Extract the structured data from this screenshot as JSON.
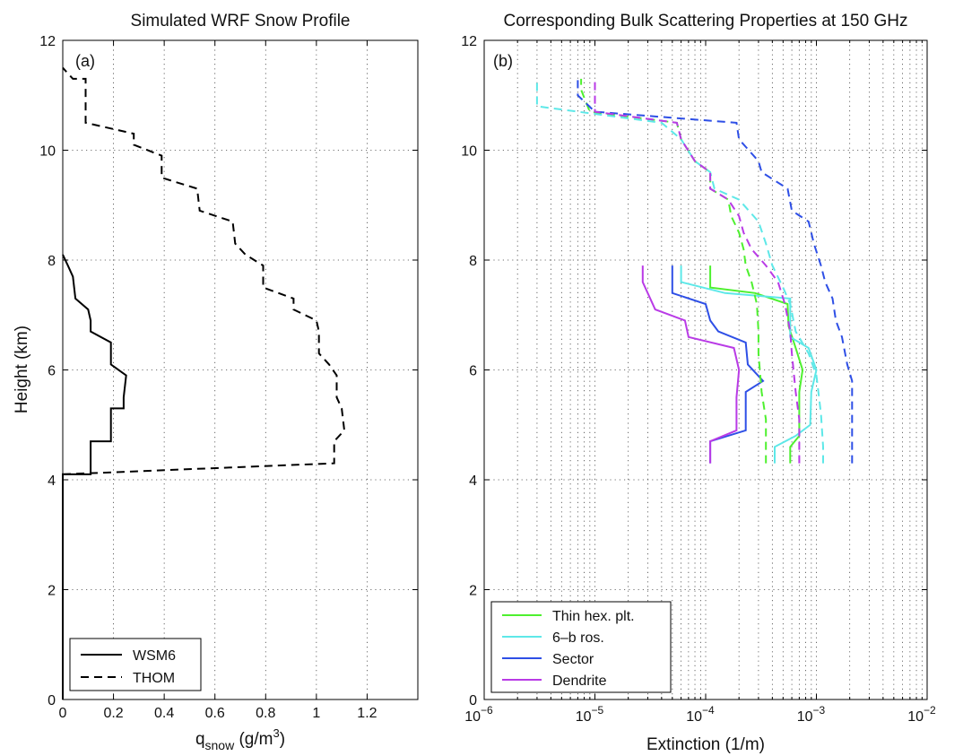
{
  "chart_data": [
    {
      "type": "line",
      "panel": "(a)",
      "title": "Simulated WRF Snow Profile",
      "xlabel_main": "q",
      "xlabel_sub": "snow",
      "xlabel_unit_pre": " (g/m",
      "xlabel_unit_sup": "3",
      "xlabel_unit_post": ")",
      "ylabel": "Height (km)",
      "xlim": [
        0,
        1.4
      ],
      "ylim": [
        0,
        12
      ],
      "xticks": [
        "0",
        "0.2",
        "0.4",
        "0.6",
        "0.8",
        "1",
        "1.2"
      ],
      "yticks": [
        "0",
        "2",
        "4",
        "6",
        "8",
        "10",
        "12"
      ],
      "grid": true,
      "legend_position": "bottom-left",
      "series": [
        {
          "name": "WSM6",
          "style": "solid",
          "color": "#000000",
          "points": [
            [
              0,
              0
            ],
            [
              0,
              4.1
            ],
            [
              0.11,
              4.1
            ],
            [
              0.11,
              4.3
            ],
            [
              0.11,
              4.7
            ],
            [
              0.19,
              4.7
            ],
            [
              0.19,
              4.9
            ],
            [
              0.19,
              5.3
            ],
            [
              0.24,
              5.3
            ],
            [
              0.24,
              5.5
            ],
            [
              0.25,
              5.9
            ],
            [
              0.19,
              6.1
            ],
            [
              0.19,
              6.5
            ],
            [
              0.11,
              6.7
            ],
            [
              0.11,
              6.9
            ],
            [
              0.1,
              7.1
            ],
            [
              0.05,
              7.3
            ],
            [
              0.04,
              7.7
            ],
            [
              0.02,
              7.9
            ],
            [
              0.0,
              8.1
            ]
          ]
        },
        {
          "name": "THOM",
          "style": "dashed",
          "color": "#000000",
          "points": [
            [
              0,
              4.1
            ],
            [
              1.07,
              4.3
            ],
            [
              1.07,
              4.7
            ],
            [
              1.11,
              4.9
            ],
            [
              1.1,
              5.3
            ],
            [
              1.08,
              5.5
            ],
            [
              1.08,
              5.9
            ],
            [
              1.05,
              6.1
            ],
            [
              1.01,
              6.3
            ],
            [
              1.01,
              6.7
            ],
            [
              1.0,
              6.9
            ],
            [
              0.91,
              7.1
            ],
            [
              0.91,
              7.3
            ],
            [
              0.79,
              7.5
            ],
            [
              0.79,
              7.9
            ],
            [
              0.72,
              8.1
            ],
            [
              0.68,
              8.3
            ],
            [
              0.67,
              8.7
            ],
            [
              0.54,
              8.9
            ],
            [
              0.53,
              9.3
            ],
            [
              0.39,
              9.5
            ],
            [
              0.39,
              9.9
            ],
            [
              0.28,
              10.1
            ],
            [
              0.28,
              10.3
            ],
            [
              0.09,
              10.5
            ],
            [
              0.09,
              10.7
            ],
            [
              0.09,
              11.3
            ],
            [
              0.04,
              11.3
            ],
            [
              0.0,
              11.5
            ]
          ]
        }
      ]
    },
    {
      "type": "line",
      "panel": "(b)",
      "title": "Corresponding Bulk Scattering Properties at 150 GHz",
      "xlabel": "Extinction (1/m)",
      "ylabel": "",
      "xscale": "log",
      "xlim": [
        1e-06,
        0.01
      ],
      "ylim": [
        0,
        12
      ],
      "xticks_base": "10",
      "xticks_exp": [
        "−6",
        "−5",
        "−4",
        "−3",
        "−2"
      ],
      "yticks": [
        "0",
        "2",
        "4",
        "6",
        "8",
        "10",
        "12"
      ],
      "grid": true,
      "legend_position": "bottom-left",
      "series": [
        {
          "name": "Thin hex. plt.",
          "style": "solid",
          "color": "#4ef02f",
          "points": [
            [
              0.00058,
              4.3
            ],
            [
              0.00058,
              4.6
            ],
            [
              0.0007,
              4.8
            ],
            [
              0.0007,
              5.6
            ],
            [
              0.00075,
              6.0
            ],
            [
              0.00065,
              6.4
            ],
            [
              0.00056,
              6.8
            ],
            [
              0.00055,
              7.2
            ],
            [
              0.00028,
              7.4
            ],
            [
              0.00011,
              7.5
            ],
            [
              0.00011,
              7.9
            ]
          ]
        },
        {
          "name": "6–b ros.",
          "style": "solid",
          "color": "#5ee8e8",
          "points": [
            [
              0.00042,
              4.3
            ],
            [
              0.00042,
              4.6
            ],
            [
              0.00065,
              4.8
            ],
            [
              0.00088,
              5.0
            ],
            [
              0.0009,
              5.6
            ],
            [
              0.001,
              6.0
            ],
            [
              0.00085,
              6.4
            ],
            [
              0.00058,
              6.6
            ],
            [
              0.00058,
              7.3
            ],
            [
              0.00015,
              7.4
            ],
            [
              6e-05,
              7.6
            ],
            [
              6e-05,
              7.9
            ]
          ]
        },
        {
          "name": "Sector",
          "style": "solid",
          "color": "#2e4fe6",
          "points": [
            [
              0.00011,
              4.3
            ],
            [
              0.00011,
              4.7
            ],
            [
              0.00023,
              4.9
            ],
            [
              0.00023,
              5.6
            ],
            [
              0.00033,
              5.8
            ],
            [
              0.00024,
              6.1
            ],
            [
              0.00023,
              6.5
            ],
            [
              0.00013,
              6.7
            ],
            [
              0.00011,
              6.9
            ],
            [
              0.0001,
              7.2
            ],
            [
              5e-05,
              7.4
            ],
            [
              5e-05,
              7.9
            ]
          ]
        },
        {
          "name": "Dendrite",
          "style": "solid",
          "color": "#b93be6",
          "points": [
            [
              0.00011,
              4.3
            ],
            [
              0.00011,
              4.7
            ],
            [
              0.00019,
              4.9
            ],
            [
              0.00019,
              5.5
            ],
            [
              0.0002,
              6.0
            ],
            [
              0.00018,
              6.4
            ],
            [
              7e-05,
              6.6
            ],
            [
              6.5e-05,
              6.9
            ],
            [
              3.5e-05,
              7.1
            ],
            [
              3e-05,
              7.4
            ],
            [
              2.7e-05,
              7.6
            ],
            [
              2.7e-05,
              7.9
            ]
          ]
        },
        {
          "name": "Thin hex. plt. (dashed)",
          "style": "dashed",
          "color": "#4ef02f",
          "points": [
            [
              0.00035,
              4.3
            ],
            [
              0.00035,
              4.6
            ],
            [
              0.00035,
              5.1
            ],
            [
              0.00032,
              5.6
            ],
            [
              0.0003,
              6.3
            ],
            [
              0.0003,
              6.7
            ],
            [
              0.00029,
              7.2
            ],
            [
              0.00026,
              7.6
            ],
            [
              0.00023,
              7.9
            ],
            [
              0.00022,
              8.2
            ],
            [
              0.0002,
              8.5
            ],
            [
              0.00017,
              8.8
            ],
            [
              0.00016,
              9.1
            ],
            [
              0.00011,
              9.3
            ],
            [
              0.00011,
              9.6
            ],
            [
              8e-05,
              9.8
            ],
            [
              6e-05,
              10.2
            ],
            [
              5.5e-05,
              10.5
            ],
            [
              9e-06,
              10.7
            ],
            [
              7.5e-06,
              11.1
            ],
            [
              7.5e-06,
              11.3
            ]
          ]
        },
        {
          "name": "6–b ros. (dashed)",
          "style": "dashed",
          "color": "#5ee8e8",
          "points": [
            [
              0.00115,
              4.3
            ],
            [
              0.00115,
              4.6
            ],
            [
              0.0011,
              5.2
            ],
            [
              0.001,
              5.9
            ],
            [
              0.00085,
              6.3
            ],
            [
              0.00065,
              6.7
            ],
            [
              0.00058,
              7.2
            ],
            [
              0.0005,
              7.5
            ],
            [
              0.0004,
              7.9
            ],
            [
              0.00035,
              8.3
            ],
            [
              0.0003,
              8.7
            ],
            [
              0.0002,
              9.1
            ],
            [
              0.00012,
              9.3
            ],
            [
              0.00011,
              9.6
            ],
            [
              8e-05,
              9.8
            ],
            [
              6e-05,
              10.2
            ],
            [
              4e-05,
              10.5
            ],
            [
              3e-06,
              10.8
            ],
            [
              3e-06,
              11.3
            ]
          ]
        },
        {
          "name": "Sector (dashed)",
          "style": "dashed",
          "color": "#2e4fe6",
          "points": [
            [
              0.0021,
              4.3
            ],
            [
              0.0021,
              4.6
            ],
            [
              0.0021,
              5.8
            ],
            [
              0.0019,
              6.1
            ],
            [
              0.0017,
              6.6
            ],
            [
              0.0015,
              6.9
            ],
            [
              0.0014,
              7.3
            ],
            [
              0.0012,
              7.6
            ],
            [
              0.0011,
              7.9
            ],
            [
              0.00095,
              8.3
            ],
            [
              0.00085,
              8.7
            ],
            [
              0.0006,
              8.9
            ],
            [
              0.00055,
              9.3
            ],
            [
              0.00032,
              9.6
            ],
            [
              0.0003,
              9.8
            ],
            [
              0.0002,
              10.2
            ],
            [
              0.00019,
              10.5
            ],
            [
              1e-05,
              10.7
            ],
            [
              7e-06,
              11.0
            ],
            [
              7e-06,
              11.3
            ]
          ]
        },
        {
          "name": "Dendrite (dashed)",
          "style": "dashed",
          "color": "#b93be6",
          "points": [
            [
              0.0007,
              4.3
            ],
            [
              0.0007,
              4.6
            ],
            [
              0.0007,
              5.1
            ],
            [
              0.00065,
              5.6
            ],
            [
              0.0006,
              6.3
            ],
            [
              0.00058,
              6.7
            ],
            [
              0.00052,
              7.2
            ],
            [
              0.00045,
              7.6
            ],
            [
              0.00035,
              7.9
            ],
            [
              0.00026,
              8.2
            ],
            [
              0.00022,
              8.5
            ],
            [
              0.0002,
              8.8
            ],
            [
              0.00016,
              9.1
            ],
            [
              0.00011,
              9.3
            ],
            [
              0.00011,
              9.6
            ],
            [
              8e-05,
              9.8
            ],
            [
              6e-05,
              10.2
            ],
            [
              5.5e-05,
              10.5
            ],
            [
              1e-05,
              10.7
            ],
            [
              1e-05,
              11.3
            ]
          ]
        }
      ]
    }
  ]
}
